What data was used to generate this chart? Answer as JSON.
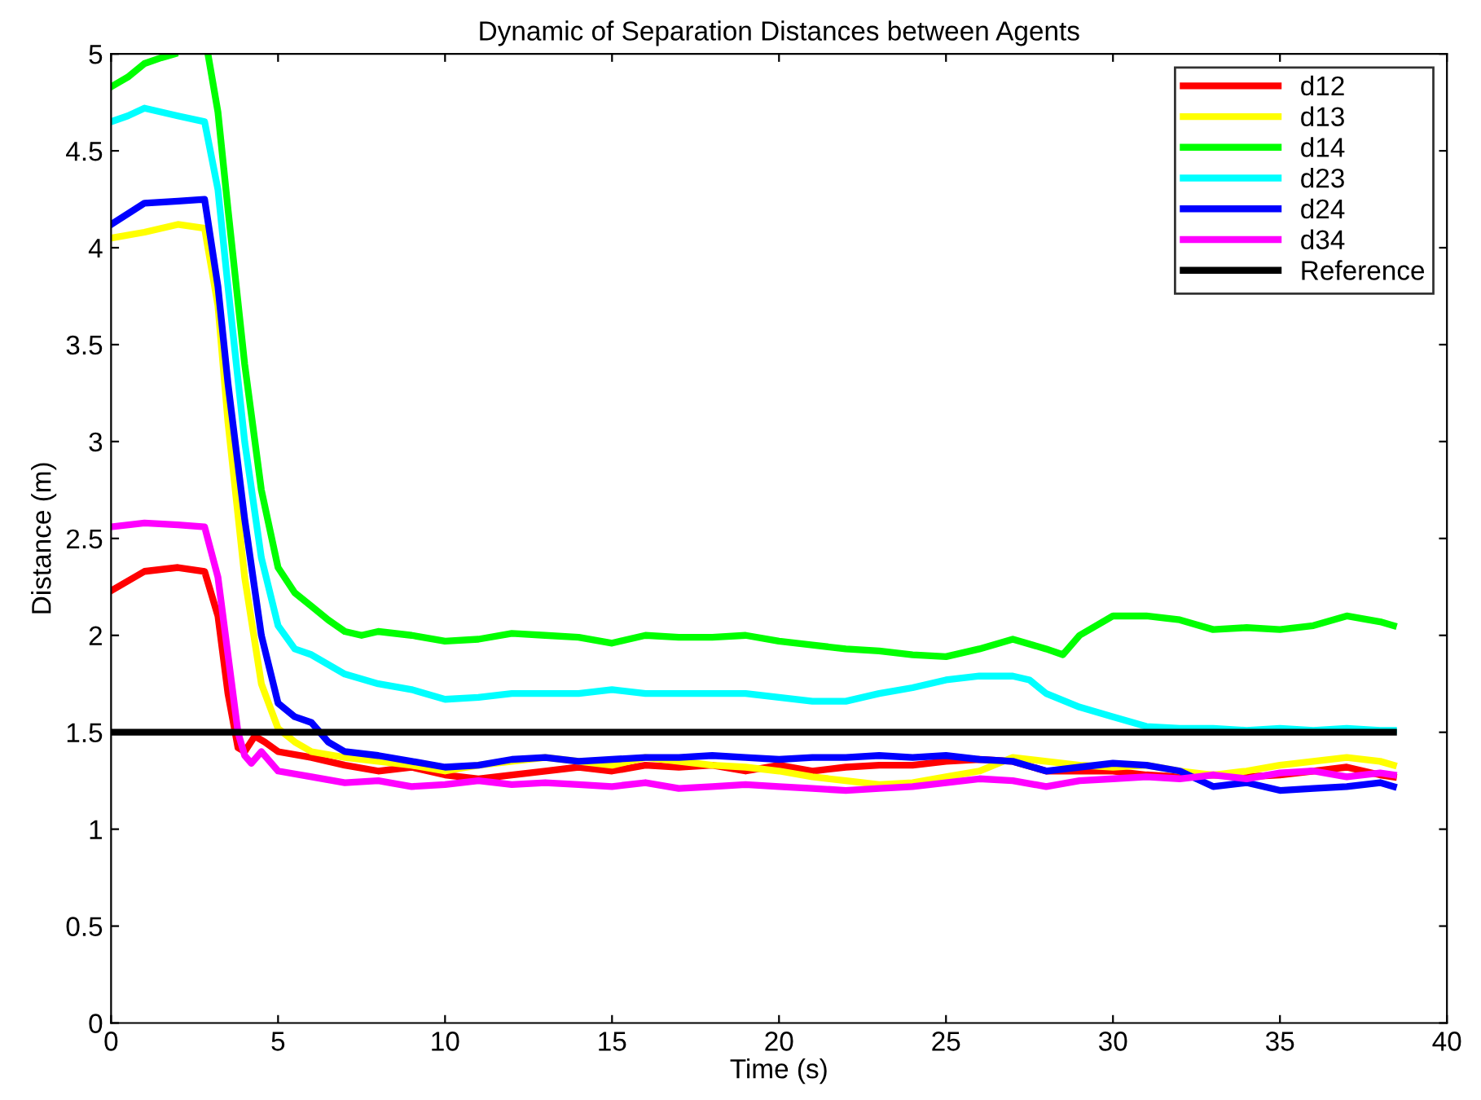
{
  "chart_data": {
    "type": "line",
    "title": "Dynamic of Separation Distances between Agents",
    "xlabel": "Time (s)",
    "ylabel": "Distance (m)",
    "xlim": [
      0,
      40
    ],
    "ylim": [
      0,
      5
    ],
    "xticks": [
      0,
      5,
      10,
      15,
      20,
      25,
      30,
      35,
      40
    ],
    "yticks": [
      0,
      0.5,
      1,
      1.5,
      2,
      2.5,
      3,
      3.5,
      4,
      4.5,
      5
    ],
    "legend": "top right",
    "grid": false,
    "line_style": "solid",
    "series": [
      {
        "name": "d12",
        "color": "#ff0000",
        "x": [
          0,
          1,
          2,
          2.8,
          3.2,
          3.5,
          3.8,
          4,
          4.3,
          4.6,
          5,
          6,
          7,
          8,
          9,
          10,
          11,
          12,
          13,
          14,
          15,
          16,
          17,
          18,
          19,
          20,
          21,
          22,
          23,
          24,
          25,
          26,
          27,
          28,
          29,
          30,
          31,
          32,
          33,
          34,
          35,
          36,
          37,
          38,
          38.4
        ],
        "values": [
          2.23,
          2.33,
          2.35,
          2.33,
          2.1,
          1.7,
          1.42,
          1.4,
          1.48,
          1.45,
          1.4,
          1.37,
          1.33,
          1.3,
          1.32,
          1.28,
          1.26,
          1.28,
          1.3,
          1.32,
          1.3,
          1.33,
          1.32,
          1.33,
          1.3,
          1.33,
          1.3,
          1.32,
          1.33,
          1.33,
          1.35,
          1.36,
          1.35,
          1.3,
          1.3,
          1.3,
          1.28,
          1.27,
          1.28,
          1.27,
          1.28,
          1.3,
          1.32,
          1.28,
          1.27
        ]
      },
      {
        "name": "d13",
        "color": "#ffff00",
        "x": [
          0,
          1,
          2,
          2.8,
          3.2,
          3.5,
          4,
          4.5,
          5,
          5.5,
          6,
          7,
          8,
          9,
          10,
          11,
          12,
          13,
          14,
          15,
          16,
          17,
          18,
          19,
          20,
          21,
          22,
          23,
          24,
          25,
          26,
          27,
          28,
          29,
          30,
          31,
          32,
          33,
          34,
          35,
          36,
          37,
          38,
          38.4
        ],
        "values": [
          4.05,
          4.08,
          4.12,
          4.1,
          3.7,
          3.1,
          2.3,
          1.75,
          1.52,
          1.45,
          1.4,
          1.37,
          1.35,
          1.33,
          1.3,
          1.33,
          1.35,
          1.37,
          1.35,
          1.33,
          1.37,
          1.35,
          1.33,
          1.32,
          1.3,
          1.27,
          1.25,
          1.23,
          1.24,
          1.27,
          1.3,
          1.37,
          1.35,
          1.33,
          1.32,
          1.33,
          1.3,
          1.28,
          1.3,
          1.33,
          1.35,
          1.37,
          1.35,
          1.33
        ]
      },
      {
        "name": "d14",
        "color": "#00ff00",
        "x": [
          0,
          0.5,
          1,
          1.5,
          1.9,
          2.4,
          2.9,
          3.2,
          3.5,
          4,
          4.5,
          5,
          5.5,
          6,
          6.5,
          7,
          7.5,
          8,
          9,
          10,
          11,
          12,
          13,
          14,
          15,
          16,
          17,
          18,
          19,
          20,
          21,
          22,
          23,
          24,
          25,
          26,
          27,
          28,
          28.5,
          29,
          30,
          31,
          32,
          33,
          34,
          35,
          36,
          37,
          38,
          38.4
        ],
        "values": [
          4.83,
          4.88,
          4.95,
          4.98,
          5.0,
          null,
          5.0,
          4.7,
          4.2,
          3.4,
          2.75,
          2.35,
          2.22,
          2.15,
          2.08,
          2.02,
          2.0,
          2.02,
          2.0,
          1.97,
          1.98,
          2.01,
          2.0,
          1.99,
          1.96,
          2.0,
          1.99,
          1.99,
          2.0,
          1.97,
          1.95,
          1.93,
          1.92,
          1.9,
          1.89,
          1.93,
          1.98,
          1.93,
          1.9,
          2.0,
          2.1,
          2.1,
          2.08,
          2.03,
          2.04,
          2.03,
          2.05,
          2.1,
          2.07,
          2.05
        ]
      },
      {
        "name": "d23",
        "color": "#00ffff",
        "x": [
          0,
          0.5,
          1,
          2,
          2.8,
          3.2,
          3.5,
          4,
          4.5,
          5,
          5.5,
          6,
          7,
          8,
          9,
          10,
          11,
          12,
          13,
          14,
          15,
          16,
          17,
          18,
          19,
          20,
          21,
          22,
          23,
          24,
          25,
          26,
          27,
          27.5,
          28,
          29,
          30,
          31,
          32,
          33,
          34,
          35,
          36,
          37,
          38,
          38.4
        ],
        "values": [
          4.65,
          4.68,
          4.72,
          4.68,
          4.65,
          4.3,
          3.8,
          3.0,
          2.4,
          2.05,
          1.93,
          1.9,
          1.8,
          1.75,
          1.72,
          1.67,
          1.68,
          1.7,
          1.7,
          1.7,
          1.72,
          1.7,
          1.7,
          1.7,
          1.7,
          1.68,
          1.66,
          1.66,
          1.7,
          1.73,
          1.77,
          1.79,
          1.79,
          1.77,
          1.7,
          1.63,
          1.58,
          1.53,
          1.52,
          1.52,
          1.51,
          1.52,
          1.51,
          1.52,
          1.51,
          1.51
        ]
      },
      {
        "name": "d24",
        "color": "#0000ff",
        "x": [
          0,
          1,
          2,
          2.8,
          3.2,
          3.5,
          4,
          4.5,
          5,
          5.5,
          6,
          6.5,
          7,
          8,
          9,
          10,
          11,
          12,
          13,
          14,
          15,
          16,
          17,
          18,
          19,
          20,
          21,
          22,
          23,
          24,
          25,
          26,
          27,
          28,
          29,
          30,
          31,
          32,
          33,
          34,
          35,
          36,
          37,
          38,
          38.4
        ],
        "values": [
          4.12,
          4.23,
          4.24,
          4.25,
          3.8,
          3.3,
          2.6,
          2.0,
          1.65,
          1.58,
          1.55,
          1.45,
          1.4,
          1.38,
          1.35,
          1.32,
          1.33,
          1.36,
          1.37,
          1.35,
          1.36,
          1.37,
          1.37,
          1.38,
          1.37,
          1.36,
          1.37,
          1.37,
          1.38,
          1.37,
          1.38,
          1.36,
          1.35,
          1.3,
          1.32,
          1.34,
          1.33,
          1.3,
          1.22,
          1.24,
          1.2,
          1.21,
          1.22,
          1.24,
          1.22
        ]
      },
      {
        "name": "d34",
        "color": "#ff00ff",
        "x": [
          0,
          1,
          2,
          2.8,
          3.2,
          3.5,
          3.8,
          4,
          4.2,
          4.5,
          5,
          6,
          7,
          8,
          9,
          10,
          11,
          12,
          13,
          14,
          15,
          16,
          17,
          18,
          19,
          20,
          21,
          22,
          23,
          24,
          25,
          26,
          27,
          28,
          29,
          30,
          31,
          32,
          33,
          34,
          35,
          36,
          37,
          38,
          38.4
        ],
        "values": [
          2.56,
          2.58,
          2.57,
          2.56,
          2.3,
          1.9,
          1.5,
          1.38,
          1.34,
          1.4,
          1.3,
          1.27,
          1.24,
          1.25,
          1.22,
          1.23,
          1.25,
          1.23,
          1.24,
          1.23,
          1.22,
          1.24,
          1.21,
          1.22,
          1.23,
          1.22,
          1.21,
          1.2,
          1.21,
          1.22,
          1.24,
          1.26,
          1.25,
          1.22,
          1.25,
          1.26,
          1.27,
          1.26,
          1.28,
          1.26,
          1.29,
          1.3,
          1.27,
          1.29,
          1.28
        ]
      },
      {
        "name": "Reference",
        "color": "#000000",
        "x": [
          0,
          38.4
        ],
        "values": [
          1.5,
          1.5
        ]
      }
    ]
  }
}
